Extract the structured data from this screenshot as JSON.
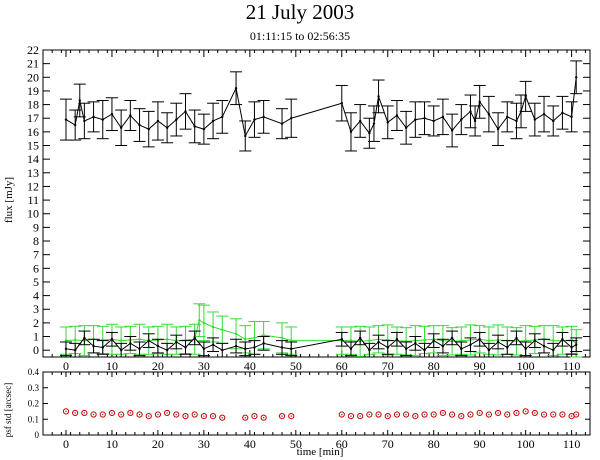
{
  "header": {
    "title": "21 July 2003",
    "subtitle": "01:11:15 to 02:56:35"
  },
  "colors": {
    "primary_series": "#000000",
    "secondary_series": "#33dd33",
    "bottom_series": "#cc0000"
  },
  "chart_data": [
    {
      "type": "line",
      "panel": "flux",
      "xlabel": "",
      "ylabel": "flux [mJy]",
      "xlim": [
        -5,
        114
      ],
      "ylim": [
        -0.5,
        22
      ],
      "x_ticks": [
        0,
        10,
        20,
        30,
        40,
        50,
        60,
        70,
        80,
        90,
        100,
        110
      ],
      "y_ticks": [
        0,
        1,
        2,
        3,
        4,
        5,
        6,
        7,
        8,
        9,
        10,
        11,
        12,
        13,
        14,
        15,
        16,
        17,
        18,
        19,
        20,
        21,
        22
      ],
      "grid": false,
      "series": [
        {
          "color": "#000000",
          "x": [
            0,
            2,
            3,
            4,
            6,
            8,
            10,
            12,
            14,
            16,
            18,
            20,
            22,
            24,
            26,
            28,
            30,
            32,
            34,
            37,
            39,
            41,
            43,
            47,
            49,
            60,
            62,
            64,
            66,
            67,
            68,
            70,
            72,
            74,
            76,
            78,
            80,
            82,
            84,
            86,
            88,
            89,
            90,
            92,
            94,
            96,
            98,
            99,
            100,
            102,
            104,
            106,
            108,
            110,
            111
          ],
          "y": [
            16.9,
            16.5,
            18.3,
            16.8,
            17.1,
            16.9,
            17.3,
            16.3,
            17.2,
            16.5,
            16.2,
            16.8,
            16.3,
            16.9,
            17.5,
            16.4,
            16.2,
            16.8,
            17.1,
            19.2,
            15.7,
            16.9,
            17.1,
            16.6,
            17.0,
            18.1,
            16.0,
            16.8,
            15.9,
            16.6,
            18.6,
            16.7,
            17.2,
            16.3,
            16.9,
            17.0,
            16.8,
            17.1,
            16.1,
            16.9,
            17.5,
            16.8,
            18.2,
            17.3,
            16.2,
            17.1,
            16.8,
            17.5,
            18.6,
            16.9,
            17.3,
            16.8,
            17.4,
            17.1,
            20.0
          ],
          "err": [
            1.5,
            1.1,
            1.2,
            1.3,
            1.1,
            1.4,
            1.2,
            1.3,
            1.1,
            1.2,
            1.3,
            1.4,
            1.1,
            1.2,
            1.3,
            1.2,
            1.1,
            1.3,
            1.2,
            1.2,
            1.1,
            1.3,
            1.2,
            1.1,
            1.4,
            1.3,
            1.4,
            1.2,
            1.1,
            1.3,
            1.2,
            1.2,
            1.1,
            1.2,
            1.3,
            1.2,
            1.1,
            1.3,
            1.2,
            1.1,
            1.2,
            1.1,
            1.2,
            1.3,
            1.2,
            1.1,
            1.3,
            1.2,
            1.1,
            1.2,
            1.3,
            1.1,
            1.2,
            1.1,
            1.2
          ]
        },
        {
          "color": "#33dd33",
          "x": [
            0,
            2,
            4,
            6,
            8,
            10,
            12,
            14,
            16,
            18,
            20,
            22,
            24,
            26,
            28,
            29,
            30,
            32,
            34,
            37,
            39,
            41,
            43,
            47,
            49,
            60,
            62,
            64,
            66,
            68,
            70,
            72,
            74,
            76,
            78,
            80,
            82,
            84,
            86,
            88,
            90,
            92,
            94,
            96,
            98,
            100,
            102,
            104,
            106,
            108,
            110,
            111
          ],
          "y": [
            0.7,
            0.75,
            0.7,
            0.8,
            0.75,
            0.8,
            0.7,
            0.75,
            0.8,
            0.7,
            0.75,
            0.8,
            0.7,
            0.75,
            0.8,
            2.2,
            2.0,
            1.7,
            1.5,
            1.2,
            0.8,
            0.9,
            1.1,
            0.9,
            0.7,
            0.7,
            0.7,
            0.65,
            0.7,
            0.8,
            0.75,
            0.7,
            0.65,
            0.7,
            0.75,
            0.8,
            0.7,
            0.65,
            0.7,
            0.75,
            0.8,
            0.7,
            0.75,
            0.7,
            0.65,
            0.7,
            0.75,
            0.8,
            0.7,
            0.7,
            0.75,
            0.5
          ],
          "err": [
            1.0,
            1.0,
            1.1,
            1.0,
            1.0,
            1.1,
            1.0,
            1.0,
            1.1,
            1.0,
            1.0,
            1.1,
            1.0,
            1.0,
            1.1,
            1.2,
            1.3,
            1.1,
            1.0,
            1.1,
            1.0,
            1.2,
            1.0,
            1.1,
            1.0,
            1.0,
            1.0,
            1.1,
            1.0,
            1.0,
            1.1,
            1.0,
            1.0,
            1.1,
            1.0,
            1.0,
            1.1,
            1.0,
            1.0,
            1.1,
            1.0,
            1.0,
            1.1,
            1.0,
            1.0,
            1.1,
            1.0,
            1.0,
            1.1,
            1.0,
            1.0,
            1.0
          ]
        },
        {
          "color": "#000000",
          "x": [
            0,
            2,
            4,
            6,
            8,
            10,
            12,
            14,
            16,
            18,
            20,
            22,
            24,
            26,
            28,
            30,
            32,
            34,
            37,
            39,
            41,
            43,
            47,
            49,
            60,
            62,
            64,
            66,
            68,
            70,
            72,
            74,
            76,
            78,
            80,
            82,
            84,
            86,
            88,
            90,
            92,
            94,
            96,
            98,
            100,
            102,
            104,
            106,
            108,
            110,
            111
          ],
          "y": [
            0.1,
            0.0,
            0.9,
            0.3,
            0.2,
            0.8,
            0.0,
            0.5,
            0.1,
            0.7,
            0.3,
            0.0,
            0.6,
            0.2,
            0.9,
            0.1,
            0.4,
            0.0,
            0.3,
            0.1,
            0.2,
            0.5,
            0.2,
            0.1,
            0.8,
            0.1,
            0.9,
            0.0,
            0.6,
            0.2,
            0.8,
            0.1,
            0.5,
            0.0,
            0.7,
            0.3,
            0.9,
            0.1,
            0.4,
            0.8,
            0.0,
            0.6,
            0.2,
            0.9,
            0.1,
            0.7,
            0.3,
            0.0,
            0.8,
            0.2,
            0.4
          ],
          "err": [
            0.5,
            0.5,
            0.5,
            0.5,
            0.5,
            0.5,
            0.5,
            0.5,
            0.5,
            0.5,
            0.5,
            0.5,
            0.5,
            0.5,
            0.5,
            0.5,
            0.5,
            0.5,
            0.5,
            0.5,
            0.5,
            0.5,
            0.5,
            0.5,
            0.5,
            0.5,
            0.5,
            0.5,
            0.5,
            0.5,
            0.5,
            0.5,
            0.5,
            0.5,
            0.5,
            0.5,
            0.5,
            0.5,
            0.5,
            0.5,
            0.5,
            0.5,
            0.5,
            0.5,
            0.5,
            0.5,
            0.5,
            0.5,
            0.5,
            0.5,
            0.5
          ]
        }
      ]
    },
    {
      "type": "scatter",
      "panel": "psf",
      "xlabel": "time [min]",
      "ylabel": "psf std [arcsec]",
      "xlim": [
        -5,
        114
      ],
      "ylim": [
        0,
        0.4
      ],
      "x_ticks": [
        0,
        10,
        20,
        30,
        40,
        50,
        60,
        70,
        80,
        90,
        100,
        110
      ],
      "y_ticks": [
        0,
        0.1,
        0.2,
        0.3,
        0.4
      ],
      "grid": false,
      "series": [
        {
          "color": "#cc0000",
          "x": [
            0,
            2,
            4,
            6,
            8,
            10,
            12,
            14,
            16,
            18,
            20,
            22,
            24,
            26,
            28,
            30,
            32,
            34,
            39,
            41,
            43,
            47,
            49,
            60,
            62,
            64,
            66,
            68,
            70,
            72,
            74,
            76,
            78,
            80,
            82,
            84,
            86,
            88,
            90,
            92,
            94,
            96,
            98,
            100,
            102,
            104,
            106,
            108,
            110,
            111
          ],
          "y": [
            0.15,
            0.14,
            0.14,
            0.13,
            0.13,
            0.14,
            0.13,
            0.14,
            0.13,
            0.12,
            0.13,
            0.14,
            0.13,
            0.12,
            0.13,
            0.12,
            0.12,
            0.11,
            0.11,
            0.12,
            0.11,
            0.12,
            0.12,
            0.13,
            0.12,
            0.12,
            0.13,
            0.13,
            0.12,
            0.13,
            0.13,
            0.12,
            0.13,
            0.13,
            0.14,
            0.13,
            0.12,
            0.13,
            0.14,
            0.13,
            0.14,
            0.13,
            0.14,
            0.15,
            0.14,
            0.13,
            0.13,
            0.13,
            0.12,
            0.13
          ]
        }
      ]
    }
  ]
}
